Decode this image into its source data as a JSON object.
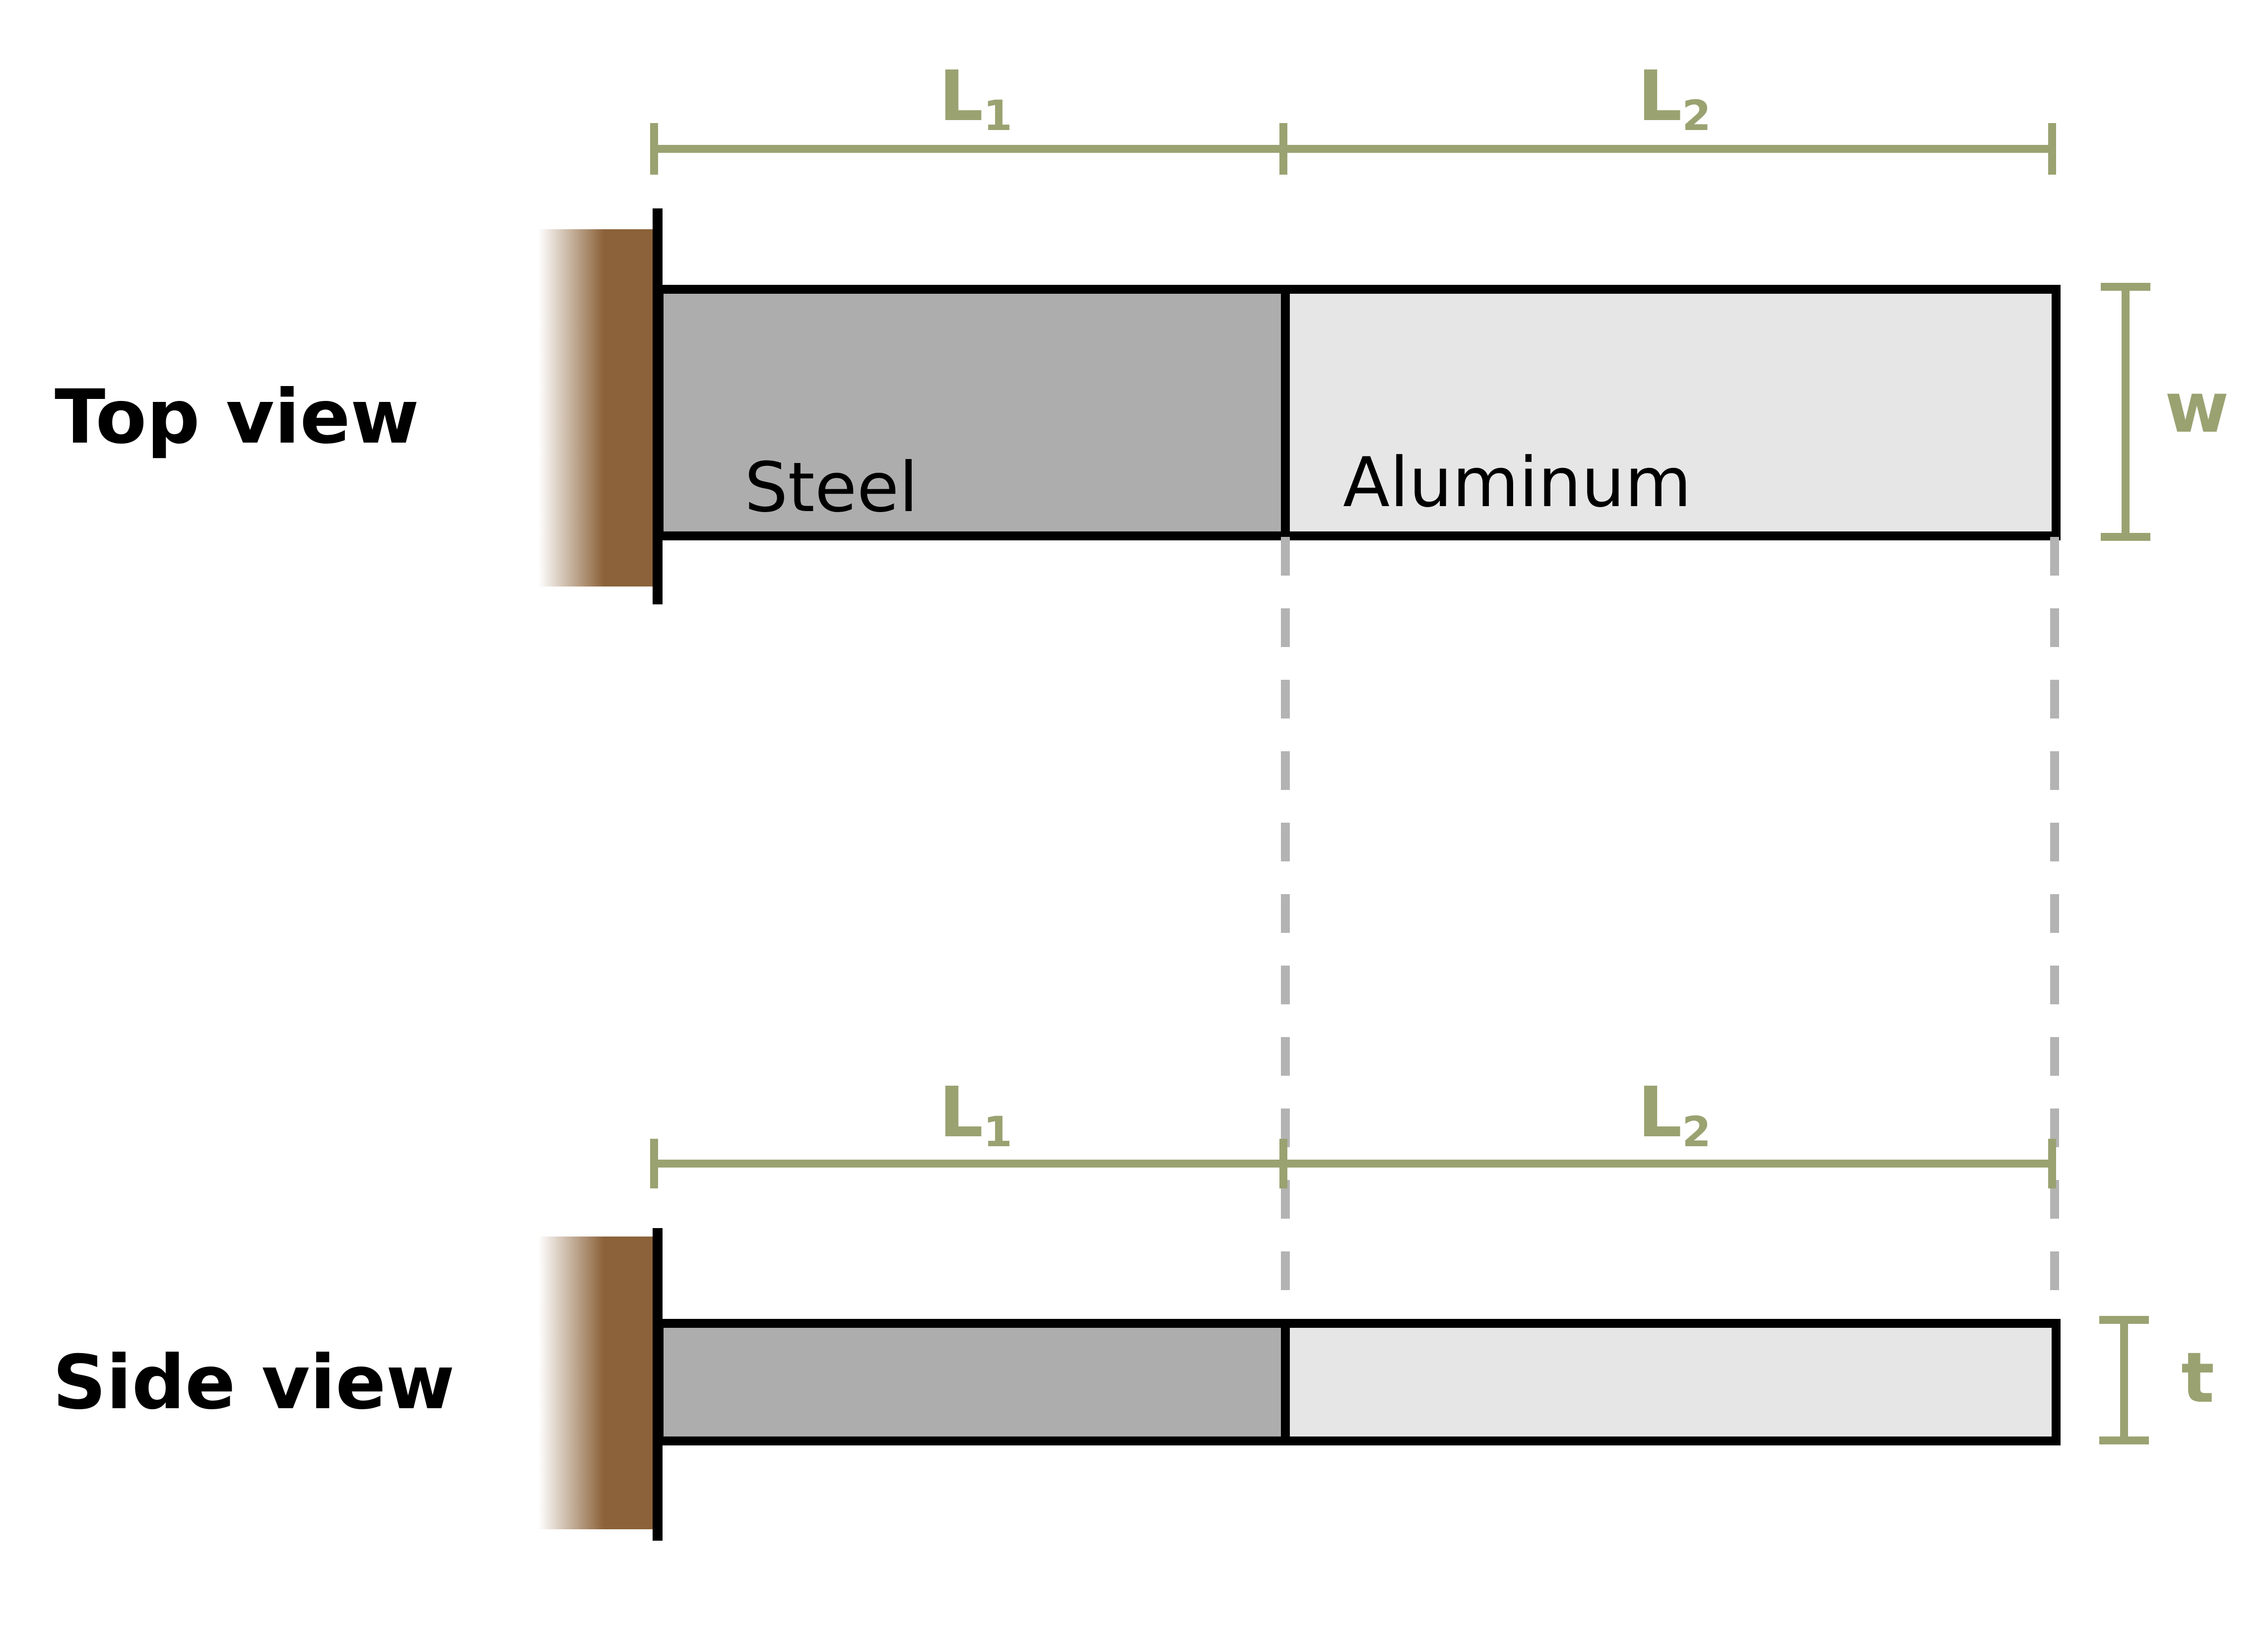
{
  "views": {
    "top": {
      "label": "Top view"
    },
    "side": {
      "label": "Side view"
    }
  },
  "materials": {
    "steel": {
      "label": "Steel",
      "fill": "#adadad"
    },
    "aluminum": {
      "label": "Aluminum",
      "fill": "#e6e6e6"
    }
  },
  "dimensions": {
    "L1": {
      "main": "L",
      "sub": "1"
    },
    "L2": {
      "main": "L",
      "sub": "2"
    },
    "w": "w",
    "t": "t"
  },
  "colors": {
    "dimension": "#9aa271",
    "wall": "#8b6239",
    "outline": "#000000",
    "guide": "#b3b3b3"
  }
}
